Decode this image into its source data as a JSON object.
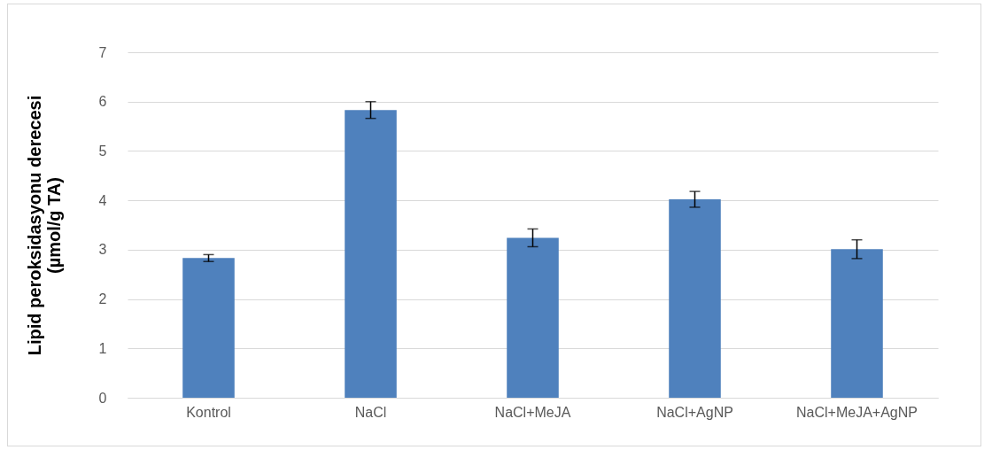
{
  "chart_data": {
    "type": "bar",
    "ylabel": "Lipid peroksidasyonu derecesi\n(µmol/g TA)",
    "categories": [
      "Kontrol",
      "NaCl",
      "NaCl+MeJA",
      "NaCl+AgNP",
      "NaCl+MeJA+AgNP"
    ],
    "values": [
      2.83,
      5.83,
      3.24,
      4.02,
      3.01
    ],
    "errors": [
      0.07,
      0.17,
      0.18,
      0.16,
      0.19
    ],
    "color": "#4f81bd",
    "ylim": [
      0,
      7
    ],
    "yticks": [
      0,
      1,
      2,
      3,
      4,
      5,
      6,
      7
    ],
    "grid": "y"
  }
}
